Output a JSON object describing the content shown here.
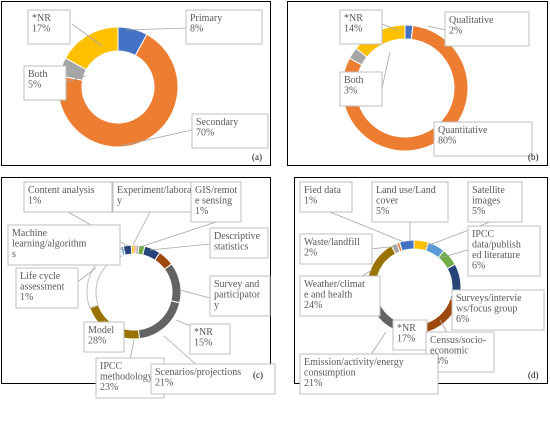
{
  "colors": {
    "blue": "#4472C4",
    "orange": "#ED7D31",
    "gray": "#A5A5A5",
    "gold": "#FFC000",
    "steel": "#5B9BD5",
    "green": "#70AD47",
    "navy": "#264478",
    "rust": "#9E480E",
    "darkgray": "#636363",
    "olive": "#997300",
    "labeltext": "#595959",
    "border": "#BFBFBF"
  },
  "chart_data": [
    {
      "type": "pie",
      "panel": "(a)",
      "slices": [
        {
          "name": "Primary",
          "value": 8,
          "label": "8%",
          "color": "#4472C4"
        },
        {
          "name": "Secondary",
          "value": 70,
          "label": "70%",
          "color": "#ED7D31"
        },
        {
          "name": "Both",
          "value": 5,
          "label": "5%",
          "color": "#A5A5A5"
        },
        {
          "name": "*NR",
          "value": 17,
          "label": "17%",
          "color": "#FFC000"
        }
      ]
    },
    {
      "type": "pie",
      "panel": "(b)",
      "slices": [
        {
          "name": "Qualitative",
          "value": 2,
          "label": "2%",
          "color": "#4472C4"
        },
        {
          "name": "Quantitative",
          "value": 80,
          "label": "80%",
          "color": "#ED7D31"
        },
        {
          "name": "Both",
          "value": 3,
          "label": "3%",
          "color": "#A5A5A5"
        },
        {
          "name": "*NR",
          "value": 14,
          "label": "14%",
          "color": "#FFC000"
        }
      ]
    },
    {
      "type": "pie",
      "panel": "(c)",
      "slices": [
        {
          "name": "Experiment/laborator y",
          "value": 0.8,
          "label": "",
          "color": "#ED7D31"
        },
        {
          "name": "GIS/remot e sensing",
          "value": 1,
          "label": "1%",
          "color": "#A5A5A5"
        },
        {
          "name": "Descriptive statistics",
          "value": 2.2,
          "label": "",
          "color": "#70AD47"
        },
        {
          "name": "Survey and participator y",
          "value": 6,
          "label": "",
          "color": "#264478"
        },
        {
          "name": "Survey and participator y (b)",
          "value": 6,
          "label": "",
          "color": "#9E480E"
        },
        {
          "name": "*NR",
          "value": 15,
          "label": "15%",
          "color": "#636363"
        },
        {
          "name": "Scenarios/projections",
          "value": 21,
          "label": "21%",
          "color": "#636363"
        },
        {
          "name": "IPCC methodology",
          "value": 23,
          "label": "23%",
          "color": "#997300"
        },
        {
          "name": "Model",
          "value": 28,
          "label": "28%",
          "color": "#FFFFFF"
        },
        {
          "name": "Life cycle assessment",
          "value": 1,
          "label": "1%",
          "color": "#5B9BD5"
        },
        {
          "name": "Machine learning/algorithm s",
          "value": 3,
          "label": "",
          "color": "#264478"
        },
        {
          "name": "Content analysis",
          "value": 1,
          "label": "1%",
          "color": "#FFC000"
        }
      ]
    },
    {
      "type": "pie",
      "panel": "(d)",
      "slices": [
        {
          "name": "Satellite images",
          "value": 5,
          "label": "5%",
          "color": "#FFC000"
        },
        {
          "name": "IPCC data/published literature",
          "value": 6,
          "label": "6%",
          "color": "#5B9BD5"
        },
        {
          "name": "Surveys/interviews/focus group",
          "value": 6,
          "label": "6%",
          "color": "#70AD47"
        },
        {
          "name": "Census/socio-economic",
          "value": 13,
          "label": "13%",
          "color": "#264478"
        },
        {
          "name": "*NR",
          "value": 17,
          "label": "17%",
          "color": "#9E480E"
        },
        {
          "name": "Emission/activity/energy consumption",
          "value": 21,
          "label": "21%",
          "color": "#636363"
        },
        {
          "name": "Weather/climate and health",
          "value": 24,
          "label": "24%",
          "color": "#997300"
        },
        {
          "name": "Waste/landfill",
          "value": 2,
          "label": "2%",
          "color": "#A5A5A5"
        },
        {
          "name": "Fied data",
          "value": 1,
          "label": "1%",
          "color": "#ED7D31"
        },
        {
          "name": "Land use/Land cover",
          "value": 5,
          "label": "5%",
          "color": "#4472C4"
        }
      ]
    }
  ],
  "labels": {
    "a": {
      "primary": [
        "Primary",
        "8%"
      ],
      "secondary": [
        "Secondary",
        "70%"
      ],
      "both": [
        "Both",
        "5%"
      ],
      "nr": [
        "*NR",
        "17%"
      ],
      "tag": "(a)"
    },
    "b": {
      "qualitative": [
        "Qualitative",
        "2%"
      ],
      "quantitative": [
        "Quantitative",
        "80%"
      ],
      "both": [
        "Both",
        "3%"
      ],
      "nr": [
        "*NR",
        "14%"
      ],
      "tag": "(b)"
    },
    "c": {
      "content": [
        "Content analysis",
        "1%"
      ],
      "experiment": [
        "Experiment/laborator",
        "y"
      ],
      "gis": [
        "GIS/remot",
        "e sensing",
        "1%"
      ],
      "ml": [
        "Machine",
        "learning/algorithm",
        "s"
      ],
      "descriptive": [
        "Descriptive",
        "statistics"
      ],
      "lca": [
        "Life cycle",
        "assessment",
        "1%"
      ],
      "survey": [
        "Survey and",
        "participator",
        "y"
      ],
      "nr": [
        "*NR",
        "15%"
      ],
      "model": [
        "Model",
        "28%"
      ],
      "ipcc": [
        "IPCC",
        "methodology",
        "23%"
      ],
      "scenarios": [
        "Scenarios/projections",
        "21%"
      ],
      "tag": "(c)"
    },
    "d": {
      "fied": [
        "Fied data",
        "1%"
      ],
      "landuse": [
        "Land use/Land",
        "cover",
        "5%"
      ],
      "satellite": [
        "Satellite",
        "images",
        "5%"
      ],
      "ipcc": [
        "IPCC",
        "data/publish",
        "ed literature",
        "6%"
      ],
      "waste": [
        "Waste/landfill",
        "2%"
      ],
      "weather": [
        "Weather/climat",
        "e and health",
        "24%"
      ],
      "surveys": [
        "Surveys/intervie",
        "ws/focus group",
        "6%"
      ],
      "nr": [
        "*NR",
        "17%"
      ],
      "census": [
        "Census/socio-",
        "economic",
        "13%"
      ],
      "emission": [
        "Emission/activity/energy",
        "consumption",
        "21%"
      ],
      "tag": "(d)"
    }
  }
}
